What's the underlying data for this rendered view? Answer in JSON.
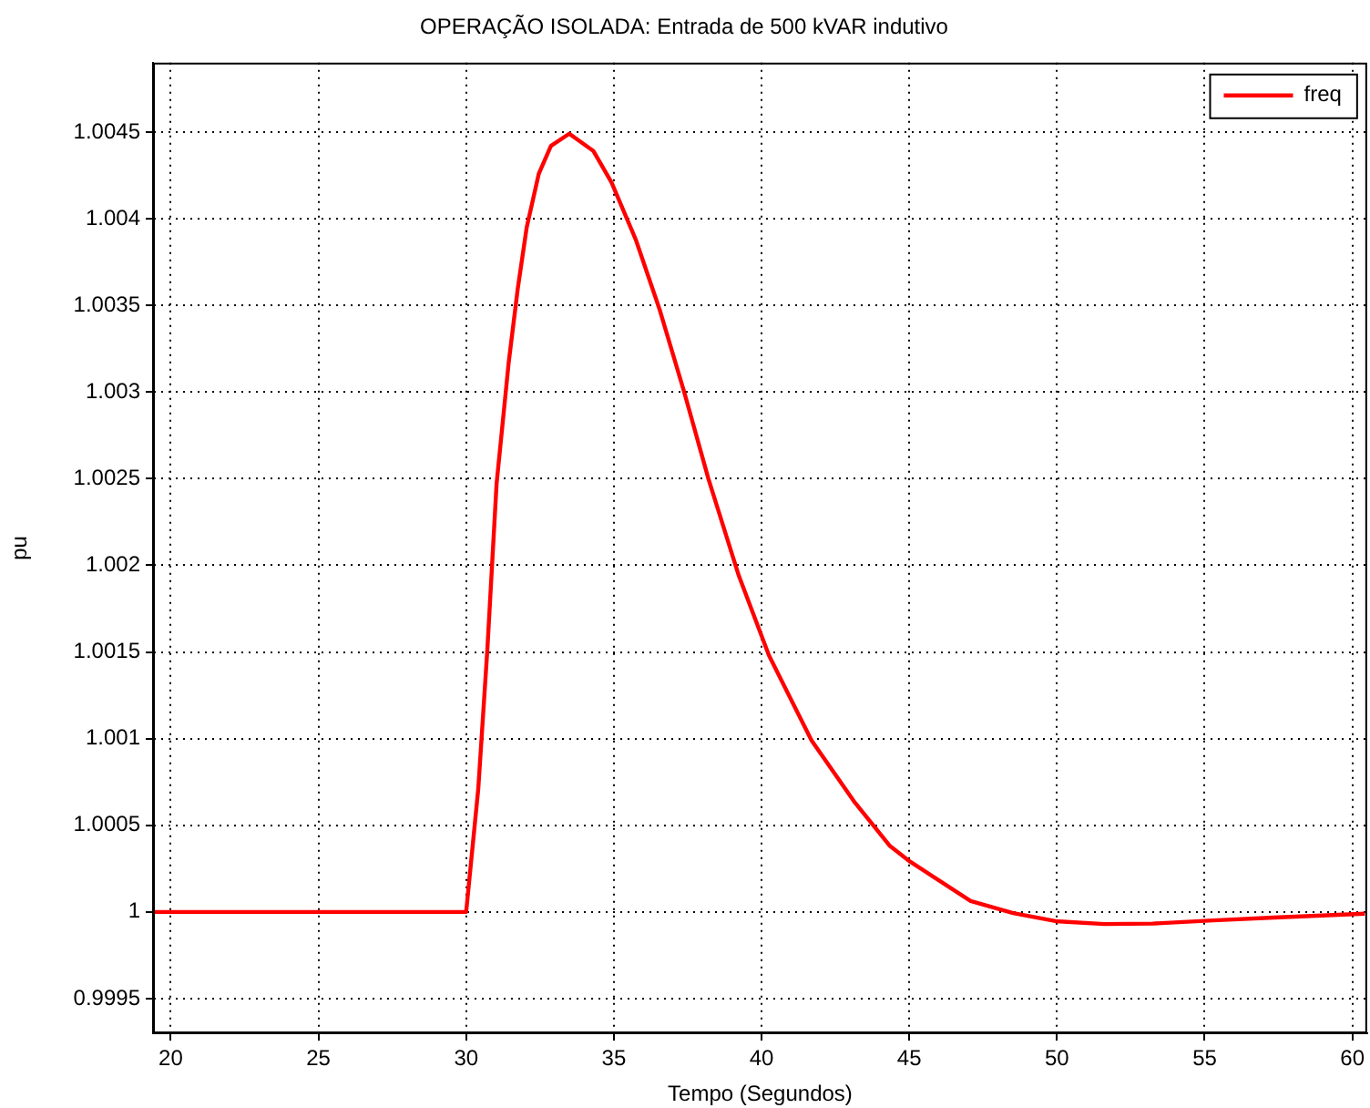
{
  "chart_data": {
    "type": "line",
    "title": "OPERAÇÃO ISOLADA: Entrada de 500 kVAR indutivo",
    "xlabel": "Tempo (Segundos)",
    "ylabel": "pu",
    "x": [
      19.4,
      25,
      30,
      30.41,
      30.72,
      31.03,
      31.44,
      31.75,
      32.05,
      32.46,
      32.87,
      33.49,
      34.31,
      34.92,
      35.74,
      36.56,
      37.38,
      38.2,
      39.23,
      40.25,
      41.69,
      43.12,
      44.35,
      45.03,
      47.08,
      48.52,
      49.95,
      51.6,
      53.24,
      55.29,
      57.34,
      60.42
    ],
    "series": [
      {
        "name": "freq",
        "color": "#ff0000",
        "values": [
          1,
          1,
          1,
          1.00071,
          1.00152,
          1.00247,
          1.00317,
          1.0036,
          1.00395,
          1.00426,
          1.00442,
          1.00449,
          1.00439,
          1.00421,
          1.00388,
          1.00347,
          1.003,
          1.0025,
          1.00194,
          1.00148,
          1.00099,
          1.00064,
          1.00038,
          1.00029,
          1.000063,
          0.999993,
          0.999947,
          0.99993,
          0.999933,
          0.999951,
          0.999968,
          0.99999
        ]
      }
    ],
    "xlim": [
      19.4,
      60.5
    ],
    "xticks": [
      20,
      25,
      30,
      35,
      40,
      45,
      50,
      55,
      60
    ],
    "ylim": [
      0.9993,
      1.0049
    ],
    "yticks": [
      0.9995,
      1,
      1.0005,
      1.001,
      1.0015,
      1.002,
      1.0025,
      1.003,
      1.0035,
      1.004,
      1.0045
    ],
    "grid": true,
    "legend": "top right",
    "marker": "none",
    "line_style": "solid"
  }
}
